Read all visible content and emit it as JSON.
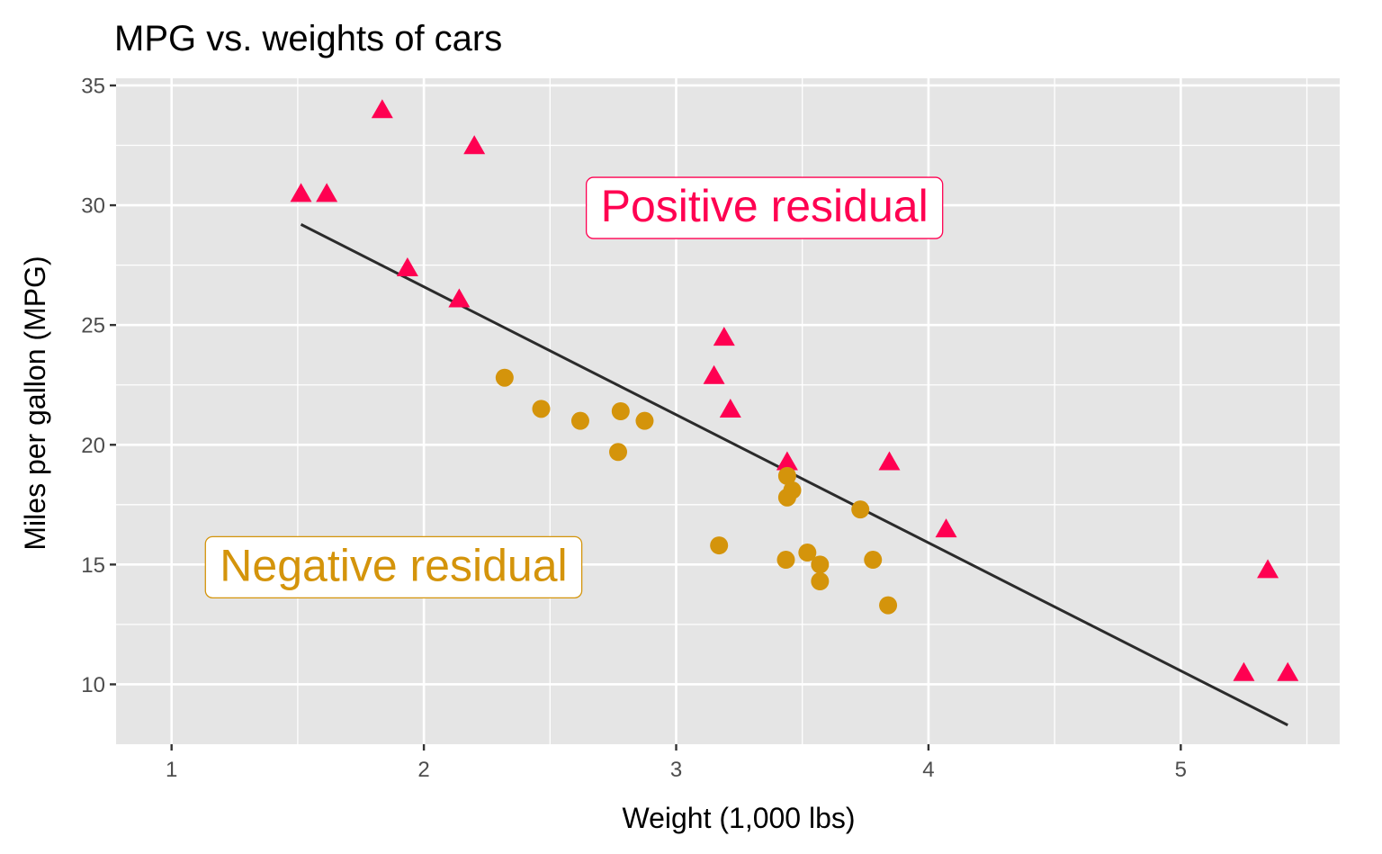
{
  "chart_data": {
    "type": "scatter",
    "title": "MPG vs. weights of cars",
    "xlabel": "Weight (1,000 lbs)",
    "ylabel": "Miles per gallon (MPG)",
    "xlim": [
      0.78,
      5.63
    ],
    "ylim": [
      7.5,
      35.3
    ],
    "x_ticks": [
      1,
      2,
      3,
      4,
      5
    ],
    "y_ticks": [
      10,
      15,
      20,
      25,
      30,
      35
    ],
    "x_tick_labels": [
      "1",
      "2",
      "3",
      "4",
      "5"
    ],
    "y_tick_labels": [
      "10",
      "15",
      "20",
      "25",
      "30",
      "35"
    ],
    "x_minor": [
      1.5,
      2.5,
      3.5,
      4.5,
      5.5
    ],
    "y_minor": [
      12.5,
      17.5,
      22.5,
      27.5,
      32.5
    ],
    "grid": true,
    "legend": "none",
    "colors": {
      "panel_bg": "#e5e5e5",
      "grid": "#ffffff",
      "positive": "#ff0051",
      "negative": "#d4940b",
      "fit_line": "#2b2b2b",
      "tick_label": "#4d4d4d",
      "tick_mark": "#333333"
    },
    "fit_line": {
      "intercept": 37.285,
      "slope": -5.344,
      "x_range": [
        1.513,
        5.424
      ]
    },
    "series": [
      {
        "name": "Positive residual",
        "marker": "triangle",
        "color": "#ff0051",
        "points": [
          {
            "x": 1.835,
            "y": 33.9
          },
          {
            "x": 2.2,
            "y": 32.4
          },
          {
            "x": 1.513,
            "y": 30.4
          },
          {
            "x": 1.615,
            "y": 30.4
          },
          {
            "x": 1.935,
            "y": 27.3
          },
          {
            "x": 2.14,
            "y": 26.0
          },
          {
            "x": 3.19,
            "y": 24.4
          },
          {
            "x": 3.15,
            "y": 22.8
          },
          {
            "x": 3.215,
            "y": 21.4
          },
          {
            "x": 3.44,
            "y": 19.2
          },
          {
            "x": 3.845,
            "y": 19.2
          },
          {
            "x": 4.07,
            "y": 16.4
          },
          {
            "x": 5.345,
            "y": 14.7
          },
          {
            "x": 5.25,
            "y": 10.4
          },
          {
            "x": 5.424,
            "y": 10.4
          }
        ]
      },
      {
        "name": "Negative residual",
        "marker": "circle",
        "color": "#d4940b",
        "points": [
          {
            "x": 2.32,
            "y": 22.8
          },
          {
            "x": 2.465,
            "y": 21.5
          },
          {
            "x": 2.62,
            "y": 21.0
          },
          {
            "x": 2.78,
            "y": 21.4
          },
          {
            "x": 2.875,
            "y": 21.0
          },
          {
            "x": 2.77,
            "y": 19.7
          },
          {
            "x": 3.44,
            "y": 18.7
          },
          {
            "x": 3.46,
            "y": 18.1
          },
          {
            "x": 3.44,
            "y": 17.8
          },
          {
            "x": 3.73,
            "y": 17.3
          },
          {
            "x": 3.17,
            "y": 15.8
          },
          {
            "x": 3.435,
            "y": 15.2
          },
          {
            "x": 3.52,
            "y": 15.5
          },
          {
            "x": 3.57,
            "y": 15.0
          },
          {
            "x": 3.78,
            "y": 15.2
          },
          {
            "x": 3.57,
            "y": 14.3
          },
          {
            "x": 3.84,
            "y": 13.3
          }
        ]
      }
    ],
    "annotations": [
      {
        "text": "Positive residual",
        "x": 3.35,
        "y": 30.0,
        "color": "#ff0051"
      },
      {
        "text": "Negative residual",
        "x": 1.88,
        "y": 15.0,
        "color": "#d4940b"
      }
    ]
  }
}
